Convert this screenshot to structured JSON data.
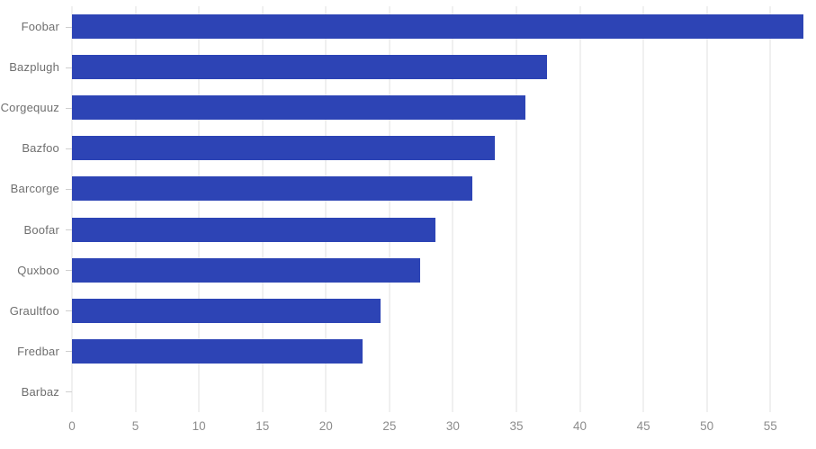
{
  "chart_data": {
    "type": "bar",
    "orientation": "horizontal",
    "categories": [
      "Foobar",
      "Bazplugh",
      "Corgequuz",
      "Bazfoo",
      "Barcorge",
      "Boofar",
      "Quxboo",
      "Graultfoo",
      "Fredbar",
      "Barbaz"
    ],
    "values": [
      57.6,
      37.4,
      35.7,
      33.3,
      31.5,
      28.6,
      27.4,
      24.3,
      22.9,
      0
    ],
    "x_ticks": [
      0,
      5,
      10,
      15,
      20,
      25,
      30,
      35,
      40,
      45,
      50,
      55
    ],
    "x_tick_labels": [
      "0",
      "5",
      "10",
      "15",
      "20",
      "25",
      "30",
      "35",
      "40",
      "45",
      "50",
      "55"
    ],
    "xlim": [
      0,
      58.1
    ],
    "grid": "vertical-only",
    "legend": "none",
    "title": "",
    "xlabel": "",
    "ylabel": "",
    "colors": {
      "bar": "#2d44b5",
      "gridline": "#e1e1e1",
      "category_label": "#6f6f6f",
      "tick_label": "#8c8c8c",
      "tick_mark": "#cfcfcf",
      "background": "#ffffff"
    }
  }
}
